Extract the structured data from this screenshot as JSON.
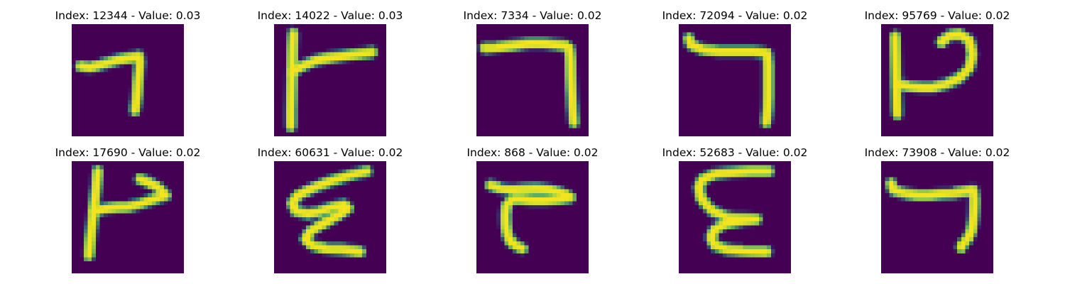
{
  "figure": {
    "colors": {
      "background": "#440154",
      "stroke_core": "#f4e31f",
      "stroke_mid": "#8fd14a",
      "stroke_edge": "#21908c"
    },
    "panels": [
      {
        "title": "Index: 12344 - Value: 0.03",
        "strokes": [
          [
            [
              2.2,
              10.5
            ],
            [
              4.5,
              10.8
            ],
            [
              7.0,
              10.2
            ],
            [
              9.5,
              9.5
            ],
            [
              12.0,
              8.8
            ],
            [
              15.0,
              8.3
            ],
            [
              16.8,
              8.0
            ],
            [
              17.0,
              9.5
            ],
            [
              16.8,
              12.0
            ],
            [
              16.5,
              15.0
            ],
            [
              16.3,
              18.0
            ],
            [
              15.8,
              21.5
            ]
          ]
        ]
      },
      {
        "title": "Index: 14022 - Value: 0.03",
        "strokes": [
          [
            [
              4.8,
              2.3
            ],
            [
              4.6,
              6.0
            ],
            [
              4.5,
              10.0
            ],
            [
              4.4,
              14.0
            ],
            [
              4.3,
              18.0
            ],
            [
              4.2,
              22.0
            ],
            [
              4.2,
              25.5
            ]
          ],
          [
            [
              4.5,
              12.0
            ],
            [
              7.0,
              10.5
            ],
            [
              10.0,
              9.2
            ],
            [
              14.0,
              8.3
            ],
            [
              18.0,
              7.8
            ],
            [
              24.5,
              7.0
            ]
          ]
        ]
      },
      {
        "title": "Index: 7334 - Value: 0.02",
        "strokes": [
          [
            [
              2.0,
              6.0
            ],
            [
              5.0,
              5.8
            ],
            [
              9.0,
              5.3
            ],
            [
              13.0,
              4.8
            ],
            [
              17.0,
              4.8
            ],
            [
              22.0,
              5.3
            ],
            [
              23.2,
              6.0
            ],
            [
              23.5,
              9.0
            ],
            [
              23.6,
              13.0
            ],
            [
              23.8,
              17.0
            ],
            [
              24.0,
              21.0
            ],
            [
              24.3,
              24.5
            ]
          ]
        ]
      },
      {
        "title": "Index: 72094 - Value: 0.02",
        "strokes": [
          [
            [
              2.5,
              3.5
            ],
            [
              3.0,
              5.2
            ],
            [
              6.0,
              6.3
            ],
            [
              10.0,
              6.8
            ],
            [
              14.0,
              6.8
            ],
            [
              18.5,
              6.8
            ],
            [
              22.0,
              7.2
            ],
            [
              22.3,
              10.0
            ],
            [
              22.3,
              14.0
            ],
            [
              22.3,
              18.0
            ],
            [
              22.2,
              21.0
            ],
            [
              21.8,
              24.5
            ]
          ]
        ]
      },
      {
        "title": "Index: 95769 - Value: 0.02",
        "strokes": [
          [
            [
              3.5,
              3.0
            ],
            [
              3.6,
              7.0
            ],
            [
              3.7,
              11.0
            ],
            [
              3.8,
              15.0
            ],
            [
              3.9,
              19.0
            ],
            [
              4.0,
              22.5
            ]
          ],
          [
            [
              4.0,
              15.0
            ],
            [
              7.0,
              15.5
            ],
            [
              10.0,
              15.8
            ],
            [
              13.0,
              15.8
            ],
            [
              16.0,
              15.0
            ],
            [
              19.5,
              13.5
            ],
            [
              22.0,
              11.0
            ],
            [
              22.8,
              7.5
            ],
            [
              22.0,
              4.0
            ],
            [
              19.5,
              2.5
            ],
            [
              17.0,
              2.8
            ],
            [
              15.0,
              4.5
            ]
          ]
        ]
      },
      {
        "title": "Index: 17690 - Value: 0.02",
        "strokes": [
          [
            [
              6.5,
              2.5
            ],
            [
              6.2,
              6.0
            ],
            [
              5.8,
              9.5
            ],
            [
              5.4,
              13.0
            ],
            [
              5.0,
              16.5
            ],
            [
              4.6,
              20.0
            ],
            [
              4.3,
              23.5
            ]
          ],
          [
            [
              5.5,
              12.5
            ],
            [
              8.5,
              11.8
            ],
            [
              11.5,
              11.5
            ],
            [
              14.5,
              11.3
            ],
            [
              17.5,
              10.5
            ],
            [
              20.5,
              9.5
            ],
            [
              23.5,
              8.5
            ],
            [
              21.5,
              6.5
            ],
            [
              19.0,
              5.2
            ],
            [
              17.0,
              4.5
            ]
          ]
        ]
      },
      {
        "title": "Index: 60631 - Value: 0.02",
        "strokes": [
          [
            [
              23.2,
              2.5
            ],
            [
              19.0,
              3.5
            ],
            [
              14.0,
              5.0
            ],
            [
              9.5,
              6.8
            ],
            [
              6.0,
              8.5
            ],
            [
              4.5,
              10.5
            ],
            [
              5.5,
              12.5
            ],
            [
              8.5,
              13.2
            ],
            [
              11.5,
              12.5
            ],
            [
              14.5,
              11.5
            ],
            [
              17.5,
              10.8
            ],
            [
              18.5,
              11.8
            ],
            [
              16.0,
              13.5
            ],
            [
              12.0,
              15.8
            ],
            [
              9.0,
              17.5
            ],
            [
              7.8,
              19.5
            ],
            [
              9.5,
              21.0
            ],
            [
              13.0,
              21.8
            ],
            [
              17.0,
              22.0
            ],
            [
              21.5,
              22.6
            ]
          ]
        ]
      },
      {
        "title": "Index: 868 - Value: 0.02",
        "strokes": [
          [
            [
              3.5,
              6.0
            ],
            [
              6.0,
              6.8
            ],
            [
              9.0,
              7.2
            ],
            [
              12.0,
              7.0
            ],
            [
              15.0,
              6.8
            ],
            [
              18.5,
              7.2
            ],
            [
              21.5,
              8.0
            ],
            [
              23.5,
              9.0
            ],
            [
              20.5,
              9.5
            ],
            [
              17.0,
              9.8
            ],
            [
              14.0,
              9.8
            ],
            [
              11.0,
              9.5
            ],
            [
              9.0,
              9.5
            ],
            [
              7.5,
              11.0
            ],
            [
              7.2,
              13.5
            ],
            [
              7.3,
              16.0
            ],
            [
              7.8,
              18.5
            ],
            [
              8.5,
              20.0
            ],
            [
              10.0,
              21.2
            ],
            [
              11.5,
              21.8
            ]
          ]
        ]
      },
      {
        "title": "Index: 52683 - Value: 0.02",
        "strokes": [
          [
            [
              22.5,
              2.5
            ],
            [
              18.0,
              2.5
            ],
            [
              13.0,
              2.8
            ],
            [
              9.0,
              3.2
            ],
            [
              6.0,
              4.5
            ],
            [
              5.0,
              6.5
            ],
            [
              5.5,
              9.0
            ],
            [
              7.0,
              11.0
            ],
            [
              8.5,
              12.5
            ],
            [
              12.0,
              14.0
            ],
            [
              16.0,
              14.3
            ],
            [
              19.5,
              14.5
            ],
            [
              16.0,
              14.8
            ],
            [
              12.0,
              15.5
            ],
            [
              9.0,
              17.0
            ],
            [
              8.0,
              19.0
            ],
            [
              9.0,
              21.0
            ],
            [
              12.0,
              22.0
            ],
            [
              16.0,
              22.3
            ],
            [
              22.0,
              22.6
            ]
          ]
        ]
      },
      {
        "title": "Index: 73908 - Value: 0.02",
        "strokes": [
          [
            [
              2.5,
              5.5
            ],
            [
              3.0,
              7.2
            ],
            [
              6.0,
              8.0
            ],
            [
              9.0,
              8.5
            ],
            [
              12.0,
              8.5
            ],
            [
              15.0,
              8.2
            ],
            [
              18.0,
              8.0
            ],
            [
              21.0,
              7.5
            ],
            [
              23.0,
              7.2
            ],
            [
              23.3,
              9.5
            ],
            [
              23.2,
              12.5
            ],
            [
              23.0,
              15.0
            ],
            [
              22.5,
              17.5
            ],
            [
              21.5,
              19.5
            ],
            [
              20.5,
              20.5
            ],
            [
              20.0,
              21.5
            ]
          ]
        ]
      }
    ]
  }
}
